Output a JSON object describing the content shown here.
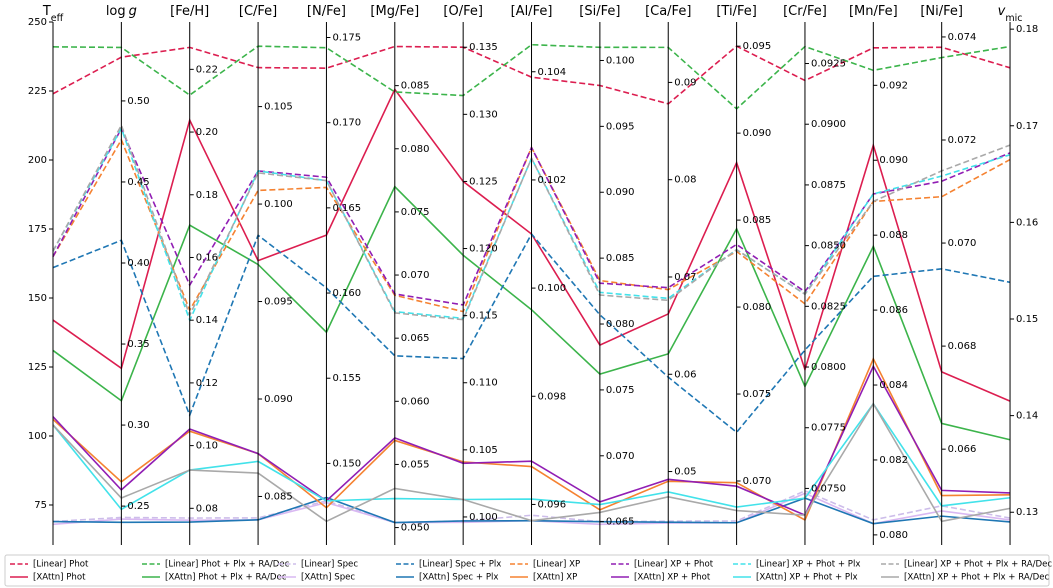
{
  "chart_data": {
    "type": "parallel",
    "axes": [
      {
        "title_parts": [
          {
            "text": "T",
            "style": "normal"
          },
          {
            "text": "eff",
            "style": "sub"
          }
        ],
        "ylim": [
          60.5,
          250
        ],
        "yticks": [
          75,
          100,
          125,
          150,
          175,
          200,
          225,
          250
        ]
      },
      {
        "title_parts": [
          {
            "text": "log",
            "style": "normal"
          },
          {
            "text": "g",
            "style": "italic"
          }
        ],
        "ylim": [
          0.226,
          0.5487
        ],
        "yticks": [
          0.25,
          {
            "value": 0.3,
            "label": "0.30"
          },
          0.35,
          {
            "value": 0.4,
            "label": "0.40"
          },
          0.45,
          {
            "value": 0.5,
            "label": "0.50"
          }
        ]
      },
      {
        "title_parts": [
          {
            "text": "[Fe/H]",
            "style": "normal"
          }
        ],
        "ylim": [
          0.0683,
          0.2351
        ],
        "yticks": [
          0.08,
          {
            "value": 0.1,
            "label": "0.10"
          },
          0.12,
          0.14,
          0.16,
          0.18,
          {
            "value": 0.2,
            "label": "0.20"
          },
          0.22
        ]
      },
      {
        "title_parts": [
          {
            "text": "[C/Fe]",
            "style": "normal"
          }
        ],
        "ylim": [
          0.08251,
          0.10934
        ],
        "yticks": [
          0.085,
          {
            "value": 0.09,
            "label": "0.090"
          },
          0.095,
          {
            "value": 0.1,
            "label": "0.100"
          },
          0.105
        ]
      },
      {
        "title_parts": [
          {
            "text": "[N/Fe]",
            "style": "normal"
          }
        ],
        "ylim": [
          0.14521,
          0.17591
        ],
        "yticks": [
          {
            "value": 0.15,
            "label": "0.150"
          },
          0.155,
          {
            "value": 0.16,
            "label": "0.160"
          },
          0.165,
          {
            "value": 0.17,
            "label": "0.170"
          },
          0.175
        ]
      },
      {
        "title_parts": [
          {
            "text": "[Mg/Fe]",
            "style": "normal"
          }
        ],
        "ylim": [
          0.04862,
          0.09004
        ],
        "yticks": [
          {
            "value": 0.05,
            "label": "0.050"
          },
          0.055,
          {
            "value": 0.06,
            "label": "0.060"
          },
          0.065,
          {
            "value": 0.07,
            "label": "0.070"
          },
          0.075,
          {
            "value": 0.08,
            "label": "0.080"
          },
          0.085
        ]
      },
      {
        "title_parts": [
          {
            "text": "[O/Fe]",
            "style": "normal"
          }
        ],
        "ylim": [
          0.09791,
          0.13688
        ],
        "yticks": [
          {
            "value": 0.1,
            "label": "0.100"
          },
          0.105,
          {
            "value": 0.11,
            "label": "0.110"
          },
          0.115,
          {
            "value": 0.12,
            "label": "0.120"
          },
          0.125,
          {
            "value": 0.13,
            "label": "0.130"
          },
          0.135
        ]
      },
      {
        "title_parts": [
          {
            "text": "[Al/Fe]",
            "style": "normal"
          }
        ],
        "ylim": [
          0.09525,
          0.10492
        ],
        "yticks": [
          0.096,
          0.098,
          {
            "value": 0.1,
            "label": "0.100"
          },
          0.102,
          0.104
        ]
      },
      {
        "title_parts": [
          {
            "text": "[Si/Fe]",
            "style": "normal"
          }
        ],
        "ylim": [
          0.06323,
          0.10292
        ],
        "yticks": [
          0.065,
          {
            "value": 0.07,
            "label": "0.070"
          },
          0.075,
          {
            "value": 0.08,
            "label": "0.080"
          },
          0.085,
          {
            "value": 0.09,
            "label": "0.090"
          },
          0.095,
          {
            "value": 0.1,
            "label": "0.100"
          }
        ]
      },
      {
        "title_parts": [
          {
            "text": "[Ca/Fe]",
            "style": "normal"
          }
        ],
        "ylim": [
          0.04245,
          0.09621
        ],
        "yticks": [
          0.05,
          0.06,
          0.07,
          0.08,
          0.09
        ]
      },
      {
        "title_parts": [
          {
            "text": "[Ti/Fe]",
            "style": "normal"
          }
        ],
        "ylim": [
          0.06632,
          0.09639
        ],
        "yticks": [
          {
            "value": 0.07,
            "label": "0.070"
          },
          0.075,
          {
            "value": 0.08,
            "label": "0.080"
          },
          0.085,
          {
            "value": 0.09,
            "label": "0.090"
          },
          0.095
        ]
      },
      {
        "title_parts": [
          {
            "text": "[Cr/Fe]",
            "style": "normal"
          }
        ],
        "ylim": [
          0.07267,
          0.09421
        ],
        "yticks": [
          {
            "value": 0.075,
            "label": "0.0750"
          },
          0.0775,
          {
            "value": 0.08,
            "label": "0.0800"
          },
          0.0825,
          {
            "value": 0.085,
            "label": "0.0850"
          },
          0.0875,
          {
            "value": 0.09,
            "label": "0.0900"
          },
          0.0925
        ]
      },
      {
        "title_parts": [
          {
            "text": "[Mn/Fe]",
            "style": "normal"
          }
        ],
        "ylim": [
          0.07973,
          0.09369
        ],
        "yticks": [
          {
            "value": 0.08,
            "label": "0.080"
          },
          0.082,
          0.084,
          0.086,
          0.088,
          {
            "value": 0.09,
            "label": "0.090"
          },
          0.092
        ]
      },
      {
        "title_parts": [
          {
            "text": "[Ni/Fe]",
            "style": "normal"
          }
        ],
        "ylim": [
          0.06414,
          0.07429
        ],
        "yticks": [
          0.066,
          0.068,
          {
            "value": 0.07,
            "label": "0.070"
          },
          0.072,
          0.074
        ]
      },
      {
        "title_parts": [
          {
            "text": "v",
            "style": "italic"
          },
          {
            "text": "mic",
            "style": "sub"
          }
        ],
        "ylim": [
          0.12661,
          0.18074
        ],
        "yticks": [
          0.13,
          0.14,
          0.15,
          0.16,
          0.17,
          0.18
        ]
      }
    ],
    "series": [
      {
        "name": "[Linear] Phot",
        "color": "#dc1e50",
        "linestyle": "dashed",
        "values": [
          224,
          0.527,
          0.227,
          0.107,
          0.1732,
          0.0881,
          0.135,
          0.1039,
          0.0981,
          0.0878,
          0.095,
          0.0918,
          0.093,
          0.0738,
          0.176
        ]
      },
      {
        "name": "[XAttn] Phot",
        "color": "#dc1e50",
        "linestyle": "solid",
        "values": [
          142,
          0.335,
          0.2038,
          0.0971,
          0.1634,
          0.0847,
          0.125,
          0.101,
          0.0784,
          0.0662,
          0.0883,
          0.0799,
          0.0904,
          0.0675,
          0.1415
        ]
      },
      {
        "name": "[Linear] Phot + Plx + RA/Dec",
        "color": "#3cb44b",
        "linestyle": "dashed",
        "values": [
          241,
          0.533,
          0.2118,
          0.1081,
          0.1744,
          0.0845,
          0.1314,
          0.1045,
          0.101,
          0.0936,
          0.0914,
          0.0932,
          0.0924,
          0.0736,
          0.1782
        ]
      },
      {
        "name": "[XAttn] Phot + Plx + RA/Dec",
        "color": "#3cb44b",
        "linestyle": "solid",
        "values": [
          131,
          0.315,
          0.1703,
          0.0969,
          0.1577,
          0.077,
          0.1195,
          0.0996,
          0.0762,
          0.0621,
          0.0845,
          0.0792,
          0.0877,
          0.0665,
          0.1375
        ]
      },
      {
        "name": "[Linear] Spec",
        "color": "#cdbdea",
        "linestyle": "dashed",
        "values": [
          69,
          0.243,
          0.0769,
          0.0839,
          0.1478,
          0.0504,
          0.0997,
          0.0958,
          0.065,
          0.0449,
          0.0677,
          0.0749,
          0.0804,
          0.0649,
          0.1294
        ]
      },
      {
        "name": "[XAttn] Spec",
        "color": "#d9b8f2",
        "linestyle": "solid",
        "values": [
          68,
          0.242,
          0.0762,
          0.0838,
          0.1477,
          0.0504,
          0.0996,
          0.0957,
          0.0648,
          0.0447,
          0.0676,
          0.0748,
          0.0803,
          0.0648,
          0.1292
        ]
      },
      {
        "name": "[Linear] Spec + Plx",
        "color": "#1f77b4",
        "linestyle": "dashed",
        "values": [
          161,
          0.414,
          0.1097,
          0.0984,
          0.1603,
          0.0636,
          0.1118,
          0.101,
          0.0807,
          0.0597,
          0.0728,
          0.0807,
          0.0869,
          0.0695,
          0.1538
        ]
      },
      {
        "name": "[XAttn] Spec + Plx",
        "color": "#1f77b4",
        "linestyle": "solid",
        "values": [
          69,
          0.24,
          0.0756,
          0.0838,
          0.148,
          0.0504,
          0.0997,
          0.0957,
          0.065,
          0.0448,
          0.0676,
          0.0746,
          0.0803,
          0.0647,
          0.129
        ]
      },
      {
        "name": "[Linear] XP",
        "color": "#f58231",
        "linestyle": "dashed",
        "values": [
          165,
          0.476,
          0.1432,
          0.1007,
          0.1662,
          0.0684,
          0.1153,
          0.1026,
          0.0833,
          0.0687,
          0.0832,
          0.0826,
          0.0889,
          0.0709,
          0.1665
        ]
      },
      {
        "name": "[XAttn] XP",
        "color": "#f58231",
        "linestyle": "solid",
        "values": [
          106,
          0.265,
          0.1046,
          0.0872,
          0.1474,
          0.0569,
          0.1041,
          0.0967,
          0.0659,
          0.049,
          0.0699,
          0.0737,
          0.0847,
          0.0651,
          0.1318
        ]
      },
      {
        "name": "[Linear] XP + Phot",
        "color": "#911eb4",
        "linestyle": "dashed",
        "values": [
          165,
          0.483,
          0.1512,
          0.1017,
          0.1668,
          0.0685,
          0.1158,
          0.1026,
          0.0831,
          0.0689,
          0.0836,
          0.0831,
          0.0891,
          0.0712,
          0.1672
        ]
      },
      {
        "name": "[XAttn] XP + Phot",
        "color": "#911eb4",
        "linestyle": "solid",
        "values": [
          107,
          0.26,
          0.1053,
          0.0872,
          0.1478,
          0.0571,
          0.104,
          0.0968,
          0.0665,
          0.0492,
          0.0697,
          0.0739,
          0.0845,
          0.0652,
          0.132
        ]
      },
      {
        "name": "[Linear] XP + Phot + Plx",
        "color": "#42e2ea",
        "linestyle": "dashed",
        "values": [
          167,
          0.483,
          0.14,
          0.1017,
          0.1666,
          0.0671,
          0.1148,
          0.1024,
          0.0824,
          0.0678,
          0.0833,
          0.083,
          0.0891,
          0.0713,
          0.167
        ]
      },
      {
        "name": "[XAttn] XP + Phot + Plx",
        "color": "#42e2ea",
        "linestyle": "solid",
        "values": [
          104,
          0.248,
          0.0922,
          0.0868,
          0.1478,
          0.0523,
          0.1013,
          0.0961,
          0.0663,
          0.0479,
          0.0685,
          0.0746,
          0.0835,
          0.0649,
          0.1315
        ]
      },
      {
        "name": "[Linear] XP + Phot + Plx + RA/Dec",
        "color": "#a9a9a9",
        "linestyle": "dashed",
        "values": [
          167,
          0.485,
          0.1416,
          0.1016,
          0.1666,
          0.067,
          0.1147,
          0.1024,
          0.0822,
          0.0676,
          0.0833,
          0.083,
          0.0889,
          0.0714,
          0.168
        ]
      },
      {
        "name": "[XAttn] XP + Phot + Plx + RA/Dec",
        "color": "#a9a9a9",
        "linestyle": "solid",
        "values": [
          104,
          0.255,
          0.0922,
          0.0862,
          0.1466,
          0.0531,
          0.1013,
          0.0957,
          0.0657,
          0.0474,
          0.0683,
          0.0739,
          0.0835,
          0.0646,
          0.1304
        ]
      }
    ]
  }
}
